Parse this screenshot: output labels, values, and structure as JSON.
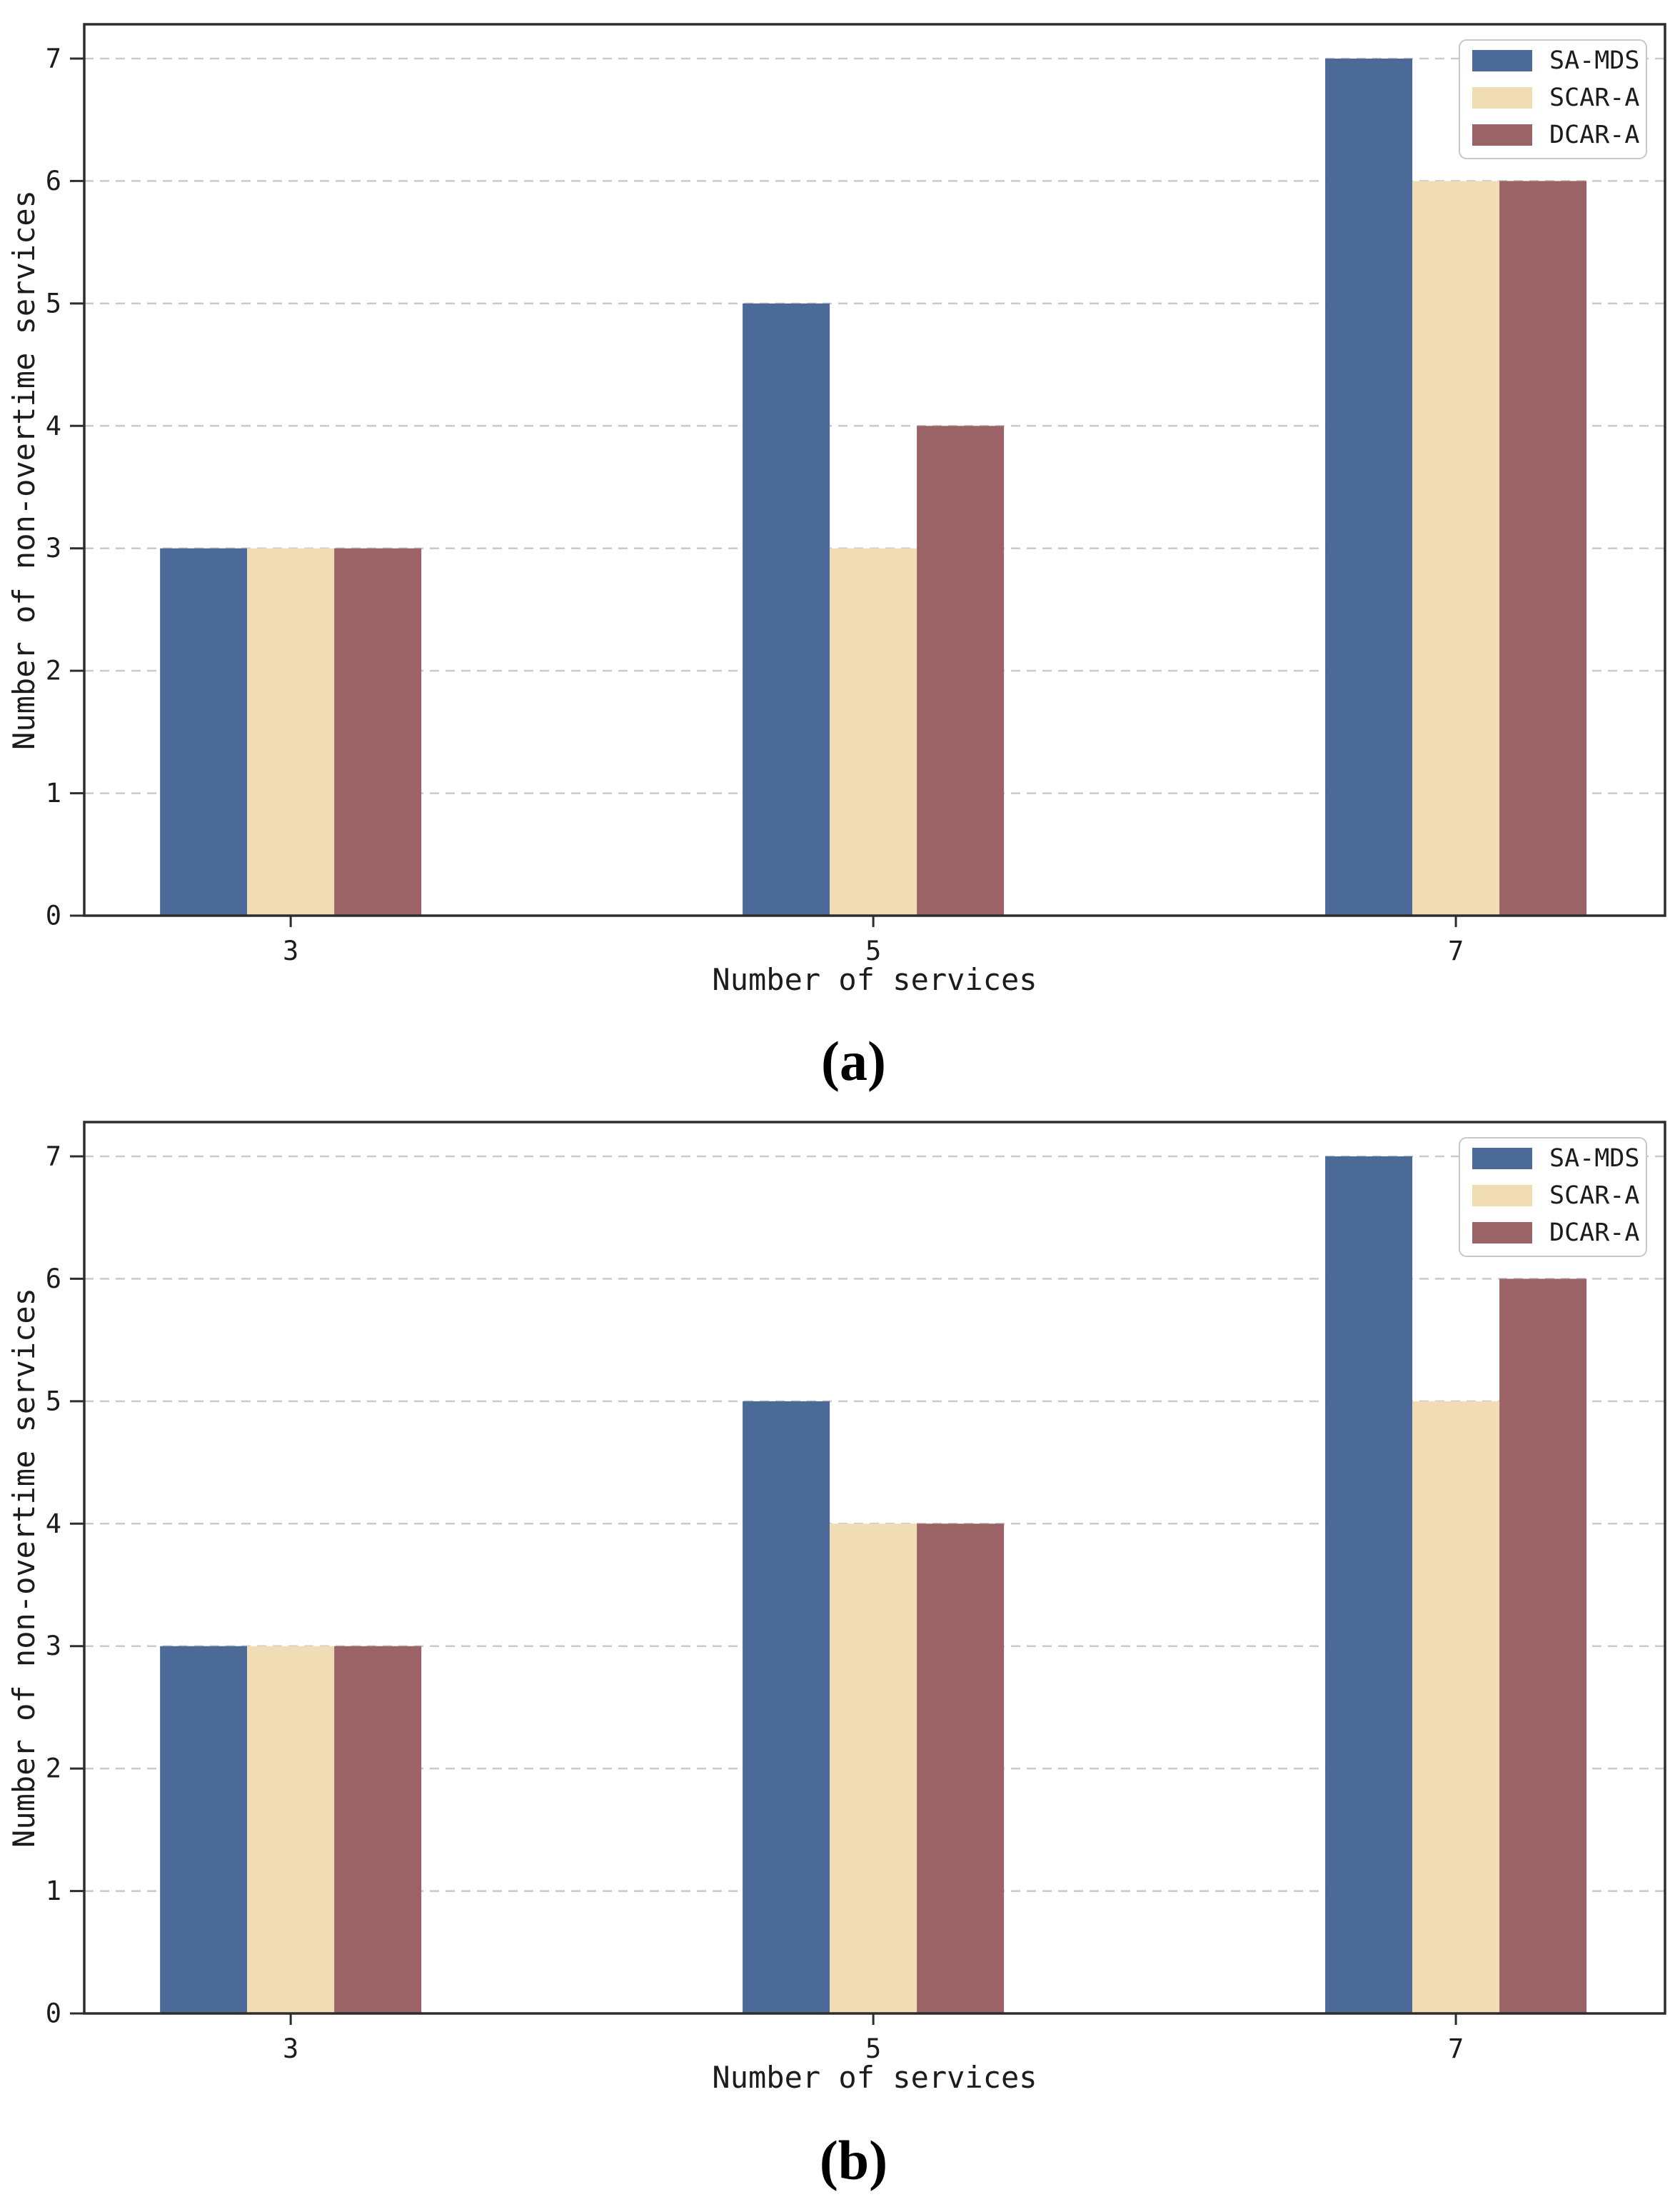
{
  "figure": {
    "background": "#ffffff"
  },
  "colors": {
    "spine": "#2d2d2d",
    "grid": "#cacaca",
    "text": "#1c1c1c",
    "legend_border": "#c8c8c8",
    "legend_background": "#ffffff"
  },
  "chart_data": [
    {
      "id": "a",
      "type": "bar",
      "caption": "(a)",
      "xlabel": "Number of services",
      "ylabel": "Number of non-overtime services",
      "categories": [
        "3",
        "5",
        "7"
      ],
      "series": [
        {
          "name": "SA-MDS",
          "color": "#4b6a98",
          "values": [
            3,
            5,
            7
          ]
        },
        {
          "name": "SCAR-A",
          "color": "#f1ddb5",
          "values": [
            3,
            3,
            6
          ]
        },
        {
          "name": "DCAR-A",
          "color": "#9b6365",
          "values": [
            3,
            4,
            6
          ]
        }
      ],
      "yticks": [
        0,
        1,
        2,
        3,
        4,
        5,
        6,
        7
      ],
      "ylim": [
        0,
        7.28
      ],
      "grid": "horizontal-dashed",
      "legend_position": "upper right"
    },
    {
      "id": "b",
      "type": "bar",
      "caption": "(b)",
      "xlabel": "Number of services",
      "ylabel": "Number of non-overtime services",
      "categories": [
        "3",
        "5",
        "7"
      ],
      "series": [
        {
          "name": "SA-MDS",
          "color": "#4b6a98",
          "values": [
            3,
            5,
            7
          ]
        },
        {
          "name": "SCAR-A",
          "color": "#f1ddb5",
          "values": [
            3,
            4,
            5
          ]
        },
        {
          "name": "DCAR-A",
          "color": "#9b6365",
          "values": [
            3,
            4,
            6
          ]
        }
      ],
      "yticks": [
        0,
        1,
        2,
        3,
        4,
        5,
        6,
        7
      ],
      "ylim": [
        0,
        7.28
      ],
      "grid": "horizontal-dashed",
      "legend_position": "upper right"
    }
  ]
}
